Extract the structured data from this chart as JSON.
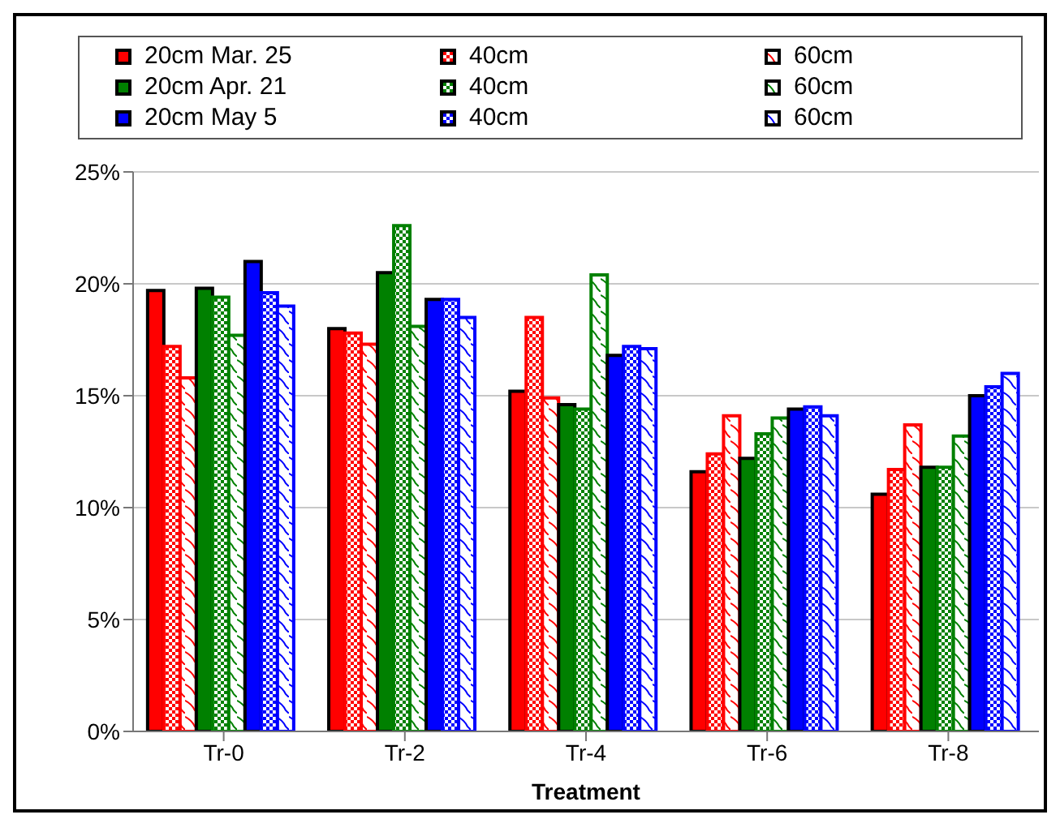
{
  "chart_data": {
    "type": "bar",
    "xlabel": "Treatment",
    "categories": [
      "Tr-0",
      "Tr-2",
      "Tr-4",
      "Tr-6",
      "Tr-8"
    ],
    "series": [
      {
        "name": "20cm Mar.  25",
        "color": "#ff0000",
        "values": [
          19.7,
          18.0,
          15.2,
          11.6,
          10.6
        ]
      },
      {
        "name": "40cm",
        "color": "#ff0000",
        "values": [
          17.2,
          17.8,
          18.5,
          12.4,
          11.7
        ]
      },
      {
        "name": "60cm",
        "color": "#ff0000",
        "values": [
          15.8,
          17.3,
          14.9,
          14.1,
          13.7
        ]
      },
      {
        "name": "20cm Apr. 21",
        "color": "#008000",
        "values": [
          19.8,
          20.5,
          14.6,
          12.2,
          11.8
        ]
      },
      {
        "name": "40cm",
        "color": "#008000",
        "values": [
          19.4,
          22.6,
          14.4,
          13.3,
          11.8
        ]
      },
      {
        "name": "60cm",
        "color": "#008000",
        "values": [
          17.7,
          18.1,
          20.4,
          14.0,
          13.2
        ]
      },
      {
        "name": "20cm May 5",
        "color": "#0000ff",
        "values": [
          21.0,
          19.3,
          16.8,
          14.4,
          15.0
        ]
      },
      {
        "name": "40cm",
        "color": "#0000ff",
        "values": [
          19.6,
          19.3,
          17.2,
          14.5,
          15.4
        ]
      },
      {
        "name": "60cm",
        "color": "#0000ff",
        "values": [
          19.0,
          18.5,
          17.1,
          14.1,
          16.0
        ]
      }
    ],
    "ylim": [
      0,
      25
    ],
    "yticks": [
      {
        "value": 0,
        "label": "0%"
      },
      {
        "value": 5,
        "label": "5%"
      },
      {
        "value": 10,
        "label": "10%"
      },
      {
        "value": 15,
        "label": "15%"
      },
      {
        "value": 20,
        "label": "20%"
      },
      {
        "value": 25,
        "label": "25%"
      }
    ],
    "grid": "y",
    "legend": "top"
  }
}
